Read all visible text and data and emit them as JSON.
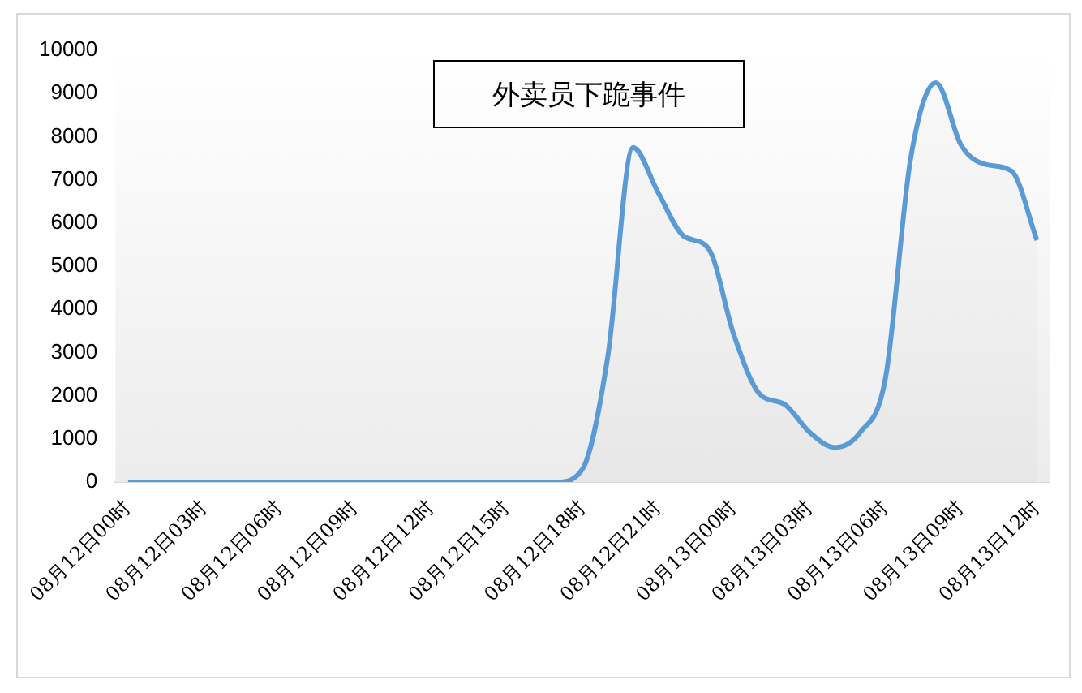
{
  "chart_data": {
    "type": "area",
    "title": "外卖员下跪事件",
    "categories": [
      "08月12日00时",
      null,
      null,
      "08月12日03时",
      null,
      null,
      "08月12日06时",
      null,
      null,
      "08月12日09时",
      null,
      null,
      "08月12日12时",
      null,
      null,
      "08月12日15时",
      null,
      null,
      "08月12日18时",
      null,
      null,
      "08月12日21时",
      null,
      null,
      "08月13日00时",
      null,
      null,
      "08月13日03时",
      null,
      null,
      "08月13日06时",
      null,
      null,
      "08月13日09时",
      null,
      null,
      "08月13日12时"
    ],
    "series": [
      {
        "color": "#5b9bd5",
        "values": [
          0,
          0,
          0,
          0,
          0,
          0,
          0,
          0,
          0,
          0,
          0,
          0,
          0,
          0,
          0,
          0,
          0,
          0,
          300,
          2900,
          7750,
          6700,
          5700,
          5400,
          3400,
          2050,
          1800,
          1150,
          800,
          1150,
          2400,
          7500,
          9250,
          7800,
          7350,
          7200,
          5600
        ]
      }
    ],
    "ylim": [
      0,
      10000
    ],
    "yticks": [
      0,
      1000,
      2000,
      3000,
      4000,
      5000,
      6000,
      7000,
      8000,
      9000,
      10000
    ],
    "grid": false,
    "legend": false
  }
}
